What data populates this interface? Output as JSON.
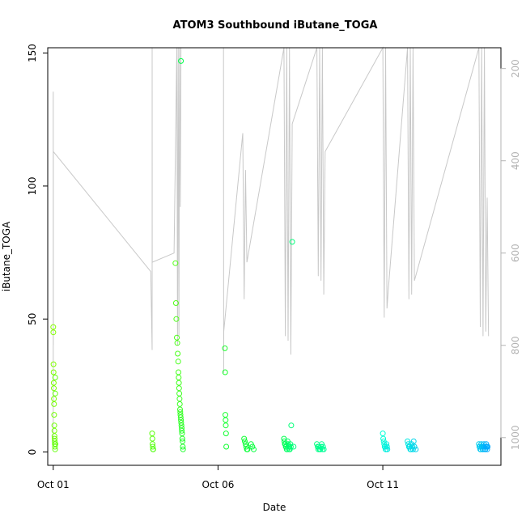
{
  "chart_data": {
    "type": "scatter",
    "title": "ATOM3 Southbound iButane_TOGA",
    "xlabel": "Date",
    "ylabel": "iButane_TOGA",
    "xlim": [
      "2017-09-30T20:00",
      "2017-10-14T14:00"
    ],
    "ylim": [
      -5,
      152
    ],
    "grid": false,
    "legend": "none",
    "x_ticks": [
      {
        "x": "2017-10-01T00:00",
        "label": "Oct 01"
      },
      {
        "x": "2017-10-06T00:00",
        "label": "Oct 06"
      },
      {
        "x": "2017-10-11T00:00",
        "label": "Oct 11"
      }
    ],
    "y_ticks": [
      0,
      50,
      100,
      150
    ],
    "right_axis": {
      "reversed": true,
      "range": [
        1060,
        155
      ],
      "ticks": [
        200,
        400,
        600,
        800,
        1000
      ],
      "color": "#b3b3b3",
      "trace_color": "#c8c8c8",
      "trace": [
        [
          "2017-10-01T00:00",
          1010
        ],
        [
          "2017-10-01T00:02",
          250
        ],
        [
          "2017-10-01T00:04",
          800
        ],
        [
          "2017-10-01T00:05",
          380
        ],
        [
          "2017-10-03T23:00",
          640
        ],
        [
          "2017-10-04T00:00",
          810
        ],
        [
          "2017-10-04T00:02",
          155
        ],
        [
          "2017-10-04T00:05",
          620
        ],
        [
          "2017-10-04T16:00",
          600
        ],
        [
          "2017-10-04T18:00",
          155
        ],
        [
          "2017-10-04T18:30",
          800
        ],
        [
          "2017-10-04T19:00",
          155
        ],
        [
          "2017-10-04T19:30",
          780
        ],
        [
          "2017-10-04T20:00",
          155
        ],
        [
          "2017-10-04T20:30",
          500
        ],
        [
          "2017-10-04T21:00",
          155
        ],
        [
          "2017-10-06T04:00",
          155
        ],
        [
          "2017-10-06T04:05",
          860
        ],
        [
          "2017-10-06T04:10",
          770
        ],
        [
          "2017-10-06T18:00",
          340
        ],
        [
          "2017-10-06T19:00",
          700
        ],
        [
          "2017-10-06T20:00",
          420
        ],
        [
          "2017-10-06T21:00",
          620
        ],
        [
          "2017-10-08T00:00",
          155
        ],
        [
          "2017-10-08T01:00",
          780
        ],
        [
          "2017-10-08T02:00",
          155
        ],
        [
          "2017-10-08T03:00",
          790
        ],
        [
          "2017-10-08T04:00",
          155
        ],
        [
          "2017-10-08T05:00",
          820
        ],
        [
          "2017-10-08T06:00",
          320
        ],
        [
          "2017-10-09T00:00",
          155
        ],
        [
          "2017-10-09T01:00",
          650
        ],
        [
          "2017-10-09T02:00",
          155
        ],
        [
          "2017-10-09T03:00",
          660
        ],
        [
          "2017-10-09T04:00",
          155
        ],
        [
          "2017-10-09T05:00",
          690
        ],
        [
          "2017-10-09T06:00",
          380
        ],
        [
          "2017-10-11T00:00",
          155
        ],
        [
          "2017-10-11T01:00",
          740
        ],
        [
          "2017-10-11T02:00",
          155
        ],
        [
          "2017-10-11T03:00",
          720
        ],
        [
          "2017-10-11T04:00",
          680
        ],
        [
          "2017-10-11T18:00",
          155
        ],
        [
          "2017-10-11T19:00",
          700
        ],
        [
          "2017-10-11T20:00",
          155
        ],
        [
          "2017-10-11T21:00",
          690
        ],
        [
          "2017-10-11T22:00",
          155
        ],
        [
          "2017-10-11T23:00",
          660
        ],
        [
          "2017-10-13T22:00",
          155
        ],
        [
          "2017-10-13T23:00",
          760
        ],
        [
          "2017-10-14T00:00",
          155
        ],
        [
          "2017-10-14T01:00",
          780
        ],
        [
          "2017-10-14T02:00",
          155
        ],
        [
          "2017-10-14T03:00",
          770
        ],
        [
          "2017-10-14T04:00",
          480
        ],
        [
          "2017-10-14T05:00",
          780
        ]
      ]
    },
    "series": [
      {
        "color_range": [
          "#84ff00",
          "#00ff3a"
        ],
        "x": [
          "2017-10-01T00:00",
          "2017-10-01T00:05",
          "2017-10-01T00:10",
          "2017-10-01T00:15",
          "2017-10-01T00:20",
          "2017-10-01T00:25",
          "2017-10-01T00:30",
          "2017-10-01T00:35",
          "2017-10-01T00:40",
          "2017-10-01T00:45",
          "2017-10-01T00:50",
          "2017-10-01T00:55",
          "2017-10-01T01:00",
          "2017-10-01T01:05",
          "2017-10-01T01:10",
          "2017-10-01T01:15",
          "2017-10-01T01:20",
          "2017-10-01T01:25",
          "2017-10-01T01:30",
          "2017-10-01T01:35",
          "2017-10-04T00:00",
          "2017-10-04T00:10",
          "2017-10-04T00:20",
          "2017-10-04T00:30",
          "2017-10-04T00:40",
          "2017-10-04T00:50",
          "2017-10-04T17:00",
          "2017-10-04T17:20",
          "2017-10-04T17:40",
          "2017-10-04T18:00",
          "2017-10-04T18:20",
          "2017-10-04T18:40",
          "2017-10-04T19:00",
          "2017-10-04T19:10",
          "2017-10-04T19:20",
          "2017-10-04T19:30",
          "2017-10-04T19:40",
          "2017-10-04T19:50",
          "2017-10-04T20:00",
          "2017-10-04T20:10",
          "2017-10-04T20:20",
          "2017-10-04T20:30",
          "2017-10-04T20:40",
          "2017-10-04T20:50",
          "2017-10-04T21:00",
          "2017-10-04T21:10",
          "2017-10-04T21:20",
          "2017-10-04T21:30",
          "2017-10-04T21:40",
          "2017-10-04T21:50",
          "2017-10-04T22:00",
          "2017-10-04T22:10",
          "2017-10-04T22:20",
          "2017-10-04T22:30",
          "2017-10-06T05:00",
          "2017-10-06T05:10",
          "2017-10-06T05:20",
          "2017-10-06T05:30",
          "2017-10-06T05:40",
          "2017-10-06T05:50",
          "2017-10-06T06:00",
          "2017-10-06T19:00",
          "2017-10-06T19:30",
          "2017-10-06T20:00",
          "2017-10-06T20:30",
          "2017-10-06T21:00",
          "2017-10-06T21:30",
          "2017-10-07T00:00",
          "2017-10-07T01:00",
          "2017-10-07T02:00"
        ],
        "y": [
          47,
          45,
          33,
          30,
          26,
          24,
          20,
          18,
          14,
          10,
          8,
          6,
          5,
          4,
          3,
          2,
          1,
          28,
          22,
          3,
          7,
          5,
          3,
          2,
          1,
          1,
          71,
          56,
          50,
          43,
          41,
          37,
          34,
          30,
          28,
          26,
          24,
          22,
          20,
          18,
          16,
          15,
          14,
          13,
          12,
          11,
          10,
          9,
          8,
          7,
          5,
          4,
          2,
          1,
          39,
          30,
          14,
          12,
          10,
          7,
          2,
          5,
          4,
          3,
          2,
          1,
          1,
          3,
          2,
          1
        ]
      },
      {
        "color_range": [
          "#00ff4a",
          "#00ff9a"
        ],
        "x": [
          "2017-10-04T21:00",
          "2017-10-08T00:00",
          "2017-10-08T00:20",
          "2017-10-08T00:40",
          "2017-10-08T01:00",
          "2017-10-08T01:20",
          "2017-10-08T01:40",
          "2017-10-08T02:00",
          "2017-10-08T02:20",
          "2017-10-08T02:40",
          "2017-10-08T03:00",
          "2017-10-08T03:20",
          "2017-10-08T03:40",
          "2017-10-08T04:00",
          "2017-10-08T04:20",
          "2017-10-08T04:40",
          "2017-10-08T05:00",
          "2017-10-08T05:20",
          "2017-10-08T06:00",
          "2017-10-08T07:00",
          "2017-10-09T00:00",
          "2017-10-09T00:30",
          "2017-10-09T01:00",
          "2017-10-09T01:30",
          "2017-10-09T02:00",
          "2017-10-09T02:30",
          "2017-10-09T03:00",
          "2017-10-09T03:30",
          "2017-10-09T04:00",
          "2017-10-09T04:30",
          "2017-10-09T05:00"
        ],
        "y": [
          147,
          5,
          4,
          3,
          3,
          2,
          2,
          1,
          1,
          4,
          3,
          2,
          1,
          2,
          1,
          3,
          2,
          10,
          79,
          2,
          3,
          2,
          1,
          2,
          1,
          1,
          2,
          3,
          1,
          2,
          1
        ]
      },
      {
        "color_range": [
          "#00ffd6",
          "#00a8ff"
        ],
        "x": [
          "2017-10-11T00:00",
          "2017-10-11T00:20",
          "2017-10-11T00:40",
          "2017-10-11T01:00",
          "2017-10-11T01:20",
          "2017-10-11T01:40",
          "2017-10-11T02:00",
          "2017-10-11T02:20",
          "2017-10-11T02:40",
          "2017-10-11T03:00",
          "2017-10-11T03:20",
          "2017-10-11T18:00",
          "2017-10-11T18:30",
          "2017-10-11T19:00",
          "2017-10-11T19:30",
          "2017-10-11T20:00",
          "2017-10-11T20:30",
          "2017-10-11T21:00",
          "2017-10-11T21:30",
          "2017-10-11T22:00",
          "2017-10-11T22:30",
          "2017-10-11T23:00",
          "2017-10-12T00:00",
          "2017-10-13T22:00",
          "2017-10-13T22:20",
          "2017-10-13T22:40",
          "2017-10-13T23:00",
          "2017-10-13T23:20",
          "2017-10-13T23:40",
          "2017-10-14T00:00",
          "2017-10-14T00:20",
          "2017-10-14T00:40",
          "2017-10-14T01:00",
          "2017-10-14T01:20",
          "2017-10-14T01:40",
          "2017-10-14T02:00",
          "2017-10-14T02:20",
          "2017-10-14T02:40",
          "2017-10-14T03:00",
          "2017-10-14T03:20",
          "2017-10-14T03:40",
          "2017-10-14T04:00",
          "2017-10-14T04:20"
        ],
        "y": [
          7,
          5,
          4,
          3,
          2,
          2,
          1,
          1,
          3,
          2,
          1,
          4,
          3,
          2,
          2,
          1,
          1,
          3,
          2,
          1,
          4,
          2,
          1,
          3,
          2,
          2,
          1,
          1,
          3,
          2,
          2,
          1,
          1,
          2,
          3,
          2,
          1,
          1,
          2,
          3,
          2,
          1,
          2
        ]
      }
    ]
  }
}
